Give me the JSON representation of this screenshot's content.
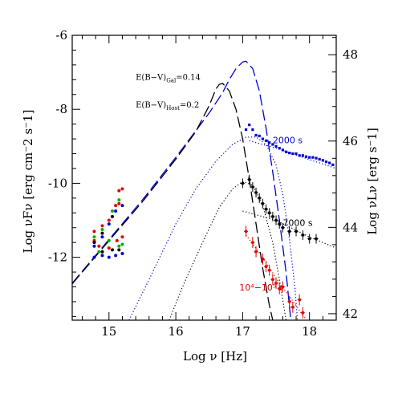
{
  "chart_data": {
    "type": "line",
    "xlabel": "Log ν [Hz]",
    "ylabel_left": "Log νFν  [erg cm⁻2 s⁻1]",
    "ylabel_right": "Log νLν  [erg s⁻1]",
    "xlim": [
      14.45,
      18.4
    ],
    "ylim": [
      -13.7,
      -6.0
    ],
    "ylim_right": [
      41.85,
      48.45
    ],
    "x_ticks": [
      15,
      16,
      17,
      18
    ],
    "y_ticks": [
      -12,
      -10,
      -8,
      -6
    ],
    "y_ticks_right": [
      42,
      44,
      46,
      48
    ],
    "grid": false,
    "annotations": [
      {
        "text": "E(B−V)",
        "sub": "Gal",
        "suffix": "=0.14",
        "x": 15.4,
        "y": -7.2
      },
      {
        "text": "E(B−V)",
        "sub": "Host",
        "suffix": "=0.2",
        "x": 15.4,
        "y": -7.95
      }
    ],
    "series_labels": [
      {
        "text": "2000 s",
        "color": "#0000d8",
        "x": 17.45,
        "y": -8.92
      },
      {
        "text": "7000 s",
        "color": "#000000",
        "x": 17.6,
        "y": -11.15
      },
      {
        "text": "10⁴−10⁵ s",
        "color": "#e00000",
        "x": 16.95,
        "y": -12.9
      }
    ],
    "series": [
      {
        "name": "",
        "color": "#0000d8",
        "style": "dashed-long",
        "points": [
          [
            14.45,
            -12.7
          ],
          [
            15.0,
            -11.52
          ],
          [
            15.5,
            -10.45
          ],
          [
            16.0,
            -9.3
          ],
          [
            16.5,
            -8.1
          ],
          [
            16.7,
            -7.55
          ],
          [
            16.8,
            -7.2
          ],
          [
            16.9,
            -6.9
          ],
          [
            17.0,
            -6.72
          ],
          [
            17.05,
            -6.7
          ],
          [
            17.15,
            -6.9
          ],
          [
            17.25,
            -7.5
          ],
          [
            17.35,
            -8.5
          ],
          [
            17.45,
            -9.7
          ],
          [
            17.55,
            -11.0
          ],
          [
            17.65,
            -12.4
          ],
          [
            17.72,
            -13.7
          ]
        ]
      },
      {
        "name": "",
        "color": "#000000",
        "style": "dashed-long",
        "points": [
          [
            14.45,
            -12.72
          ],
          [
            15.0,
            -11.55
          ],
          [
            15.5,
            -10.5
          ],
          [
            16.0,
            -9.35
          ],
          [
            16.3,
            -8.6
          ],
          [
            16.5,
            -7.9
          ],
          [
            16.6,
            -7.45
          ],
          [
            16.65,
            -7.33
          ],
          [
            16.7,
            -7.3
          ],
          [
            16.8,
            -7.5
          ],
          [
            16.9,
            -8.0
          ],
          [
            17.0,
            -8.8
          ],
          [
            17.1,
            -9.9
          ],
          [
            17.2,
            -11.1
          ],
          [
            17.3,
            -12.3
          ],
          [
            17.4,
            -13.3
          ],
          [
            17.45,
            -13.7
          ]
        ]
      },
      {
        "name": "",
        "color": "#0000d8",
        "style": "dotted",
        "points": [
          [
            15.3,
            -13.7
          ],
          [
            15.6,
            -12.6
          ],
          [
            16.0,
            -11.1
          ],
          [
            16.3,
            -10.15
          ],
          [
            16.6,
            -9.4
          ],
          [
            16.85,
            -8.95
          ],
          [
            17.05,
            -8.75
          ],
          [
            17.2,
            -8.75
          ],
          [
            17.35,
            -8.95
          ],
          [
            17.5,
            -9.5
          ],
          [
            17.6,
            -10.3
          ],
          [
            17.7,
            -11.5
          ],
          [
            17.78,
            -12.8
          ],
          [
            17.82,
            -13.7
          ]
        ]
      },
      {
        "name": "",
        "color": "#000000",
        "style": "dotted",
        "points": [
          [
            15.9,
            -13.7
          ],
          [
            16.1,
            -12.8
          ],
          [
            16.4,
            -11.6
          ],
          [
            16.65,
            -10.65
          ],
          [
            16.85,
            -10.15
          ],
          [
            17.0,
            -9.95
          ],
          [
            17.15,
            -10.05
          ],
          [
            17.3,
            -10.6
          ],
          [
            17.45,
            -11.6
          ],
          [
            17.55,
            -12.6
          ],
          [
            17.65,
            -13.7
          ]
        ]
      },
      {
        "name": "",
        "color": "#0000d8",
        "style": "dotted",
        "points": [
          [
            17.1,
            -8.85
          ],
          [
            17.5,
            -9.05
          ],
          [
            17.9,
            -9.3
          ],
          [
            18.4,
            -9.6
          ]
        ]
      },
      {
        "name": "",
        "color": "#000000",
        "style": "dotted",
        "points": [
          [
            17.0,
            -10.75
          ],
          [
            17.5,
            -11.0
          ],
          [
            18.0,
            -11.45
          ],
          [
            18.4,
            -11.75
          ]
        ]
      },
      {
        "name": "",
        "color": "#e00000",
        "style": "dotted",
        "points": [
          [
            17.05,
            -11.4
          ],
          [
            17.3,
            -12.0
          ],
          [
            17.55,
            -12.7
          ],
          [
            17.8,
            -13.3
          ],
          [
            17.95,
            -13.7
          ]
        ]
      }
    ],
    "xray_data": [
      {
        "name": "",
        "color": "#0000d8",
        "points": [
          [
            17.05,
            -8.55
          ],
          [
            17.1,
            -8.42
          ],
          [
            17.15,
            -8.55
          ],
          [
            17.2,
            -8.7
          ],
          [
            17.25,
            -8.72
          ],
          [
            17.3,
            -8.8
          ],
          [
            17.35,
            -8.85
          ],
          [
            17.4,
            -8.9
          ],
          [
            17.45,
            -8.95
          ],
          [
            17.5,
            -9.0
          ],
          [
            17.55,
            -9.05
          ],
          [
            17.6,
            -9.1
          ],
          [
            17.65,
            -9.15
          ],
          [
            17.7,
            -9.18
          ],
          [
            17.75,
            -9.2
          ],
          [
            17.8,
            -9.2
          ],
          [
            17.85,
            -9.25
          ],
          [
            17.9,
            -9.25
          ],
          [
            17.95,
            -9.28
          ],
          [
            18.0,
            -9.3
          ],
          [
            18.05,
            -9.3
          ],
          [
            18.1,
            -9.32
          ],
          [
            18.15,
            -9.35
          ],
          [
            18.2,
            -9.38
          ],
          [
            18.25,
            -9.42
          ],
          [
            18.3,
            -9.45
          ],
          [
            18.35,
            -9.5
          ]
        ],
        "err": 0.08
      },
      {
        "name": "",
        "color": "#000000",
        "points": [
          [
            17.0,
            -10.0
          ],
          [
            17.1,
            -9.9
          ],
          [
            17.15,
            -10.1
          ],
          [
            17.2,
            -10.25
          ],
          [
            17.25,
            -10.4
          ],
          [
            17.3,
            -10.55
          ],
          [
            17.35,
            -10.7
          ],
          [
            17.4,
            -10.8
          ],
          [
            17.45,
            -10.9
          ],
          [
            17.5,
            -11.0
          ],
          [
            17.55,
            -11.1
          ],
          [
            17.6,
            -11.2
          ],
          [
            17.7,
            -11.3
          ],
          [
            17.8,
            -11.3
          ],
          [
            17.9,
            -11.4
          ],
          [
            18.0,
            -11.5
          ],
          [
            18.1,
            -11.5
          ]
        ],
        "err": 0.13
      },
      {
        "name": "",
        "color": "#e00000",
        "points": [
          [
            17.05,
            -11.3
          ],
          [
            17.15,
            -11.6
          ],
          [
            17.2,
            -11.85
          ],
          [
            17.3,
            -12.05
          ],
          [
            17.35,
            -12.25
          ],
          [
            17.4,
            -12.35
          ],
          [
            17.45,
            -12.6
          ],
          [
            17.5,
            -12.7
          ],
          [
            17.55,
            -12.85
          ],
          [
            17.6,
            -12.8
          ],
          [
            17.7,
            -13.2
          ],
          [
            17.75,
            -13.35
          ],
          [
            17.85,
            -13.15
          ],
          [
            17.9,
            -13.5
          ]
        ],
        "err": 0.15
      }
    ],
    "optical_data": [
      {
        "color": "#e00000",
        "points": [
          [
            15.15,
            -10.2
          ],
          [
            15.2,
            -10.15
          ],
          [
            15.1,
            -10.6
          ],
          [
            15.15,
            -10.55
          ],
          [
            15.0,
            -11.0
          ],
          [
            14.9,
            -11.15
          ],
          [
            14.78,
            -11.3
          ],
          [
            15.2,
            -11.45
          ],
          [
            15.12,
            -11.55
          ],
          [
            15.0,
            -11.75
          ],
          [
            14.78,
            -11.55
          ],
          [
            14.85,
            -11.7
          ]
        ]
      },
      {
        "color": "#00b000",
        "points": [
          [
            15.15,
            -10.45
          ],
          [
            15.05,
            -10.75
          ],
          [
            14.9,
            -11.25
          ],
          [
            14.78,
            -11.45
          ],
          [
            15.0,
            -11.55
          ],
          [
            15.15,
            -11.7
          ],
          [
            14.85,
            -11.85
          ],
          [
            15.2,
            -11.65
          ]
        ]
      },
      {
        "color": "#0000d8",
        "points": [
          [
            15.1,
            -10.75
          ],
          [
            15.2,
            -10.6
          ],
          [
            15.0,
            -11.1
          ],
          [
            14.9,
            -11.45
          ],
          [
            14.78,
            -11.7
          ],
          [
            14.78,
            -12.0
          ],
          [
            14.9,
            -11.95
          ],
          [
            15.0,
            -12.0
          ],
          [
            15.1,
            -11.95
          ],
          [
            15.2,
            -11.9
          ]
        ]
      },
      {
        "color": "#000000",
        "points": [
          [
            15.05,
            -10.9
          ],
          [
            14.9,
            -11.35
          ],
          [
            14.78,
            -11.6
          ],
          [
            15.05,
            -11.8
          ],
          [
            14.9,
            -11.85
          ],
          [
            15.15,
            -11.8
          ]
        ]
      }
    ]
  }
}
